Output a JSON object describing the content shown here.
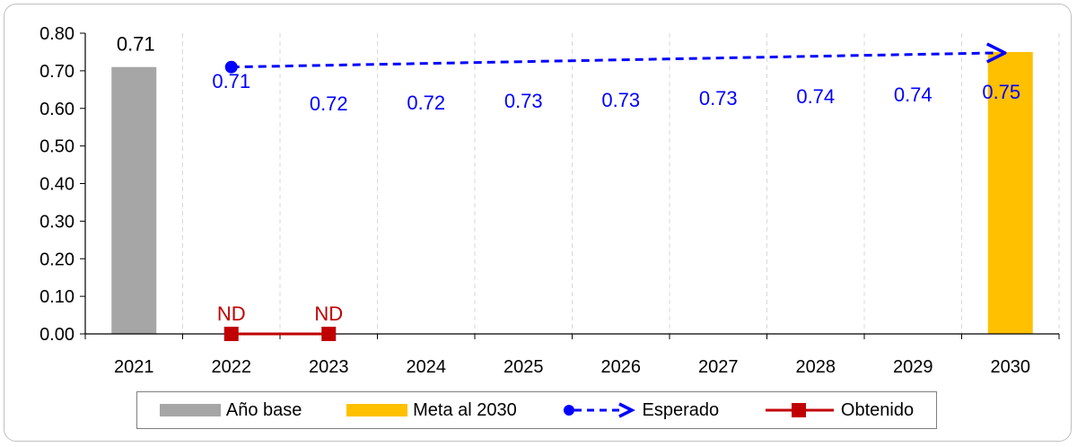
{
  "colors": {
    "base_bar": "#a6a6a6",
    "goal_bar": "#ffc000",
    "expected": "#0000ff",
    "obtained": "#c00000",
    "grid": "#d9d9d9"
  },
  "legend": {
    "base": "Año base",
    "goal": "Meta al 2030",
    "expected": "Esperado",
    "obtained": "Obtenido"
  },
  "chart_data": {
    "type": "bar",
    "categories": [
      "2021",
      "2022",
      "2023",
      "2024",
      "2025",
      "2026",
      "2027",
      "2028",
      "2029",
      "2030"
    ],
    "ylim": [
      0,
      0.8
    ],
    "yticks": [
      "0.00",
      "0.10",
      "0.20",
      "0.30",
      "0.40",
      "0.50",
      "0.60",
      "0.70",
      "0.80"
    ],
    "grid": "vertical dashed",
    "legend_position": "bottom",
    "bars": [
      {
        "name": "Año base",
        "category": "2021",
        "value": 0.71,
        "label": "0.71"
      },
      {
        "name": "Meta al 2030",
        "category": "2030",
        "value": 0.75,
        "label": ""
      }
    ],
    "series": [
      {
        "name": "Esperado",
        "type": "line",
        "style": "dashed-arrow",
        "from": {
          "category": "2022",
          "value": 0.71
        },
        "to": {
          "category": "2030",
          "value": 0.75
        },
        "labels": [
          {
            "category": "2022",
            "text": "0.71"
          },
          {
            "category": "2023",
            "text": "0.72"
          },
          {
            "category": "2024",
            "text": "0.72"
          },
          {
            "category": "2025",
            "text": "0.73"
          },
          {
            "category": "2026",
            "text": "0.73"
          },
          {
            "category": "2027",
            "text": "0.73"
          },
          {
            "category": "2028",
            "text": "0.74"
          },
          {
            "category": "2029",
            "text": "0.74"
          },
          {
            "category": "2030",
            "text": "0.75"
          }
        ]
      },
      {
        "name": "Obtenido",
        "type": "line",
        "points": [
          {
            "category": "2022",
            "value": 0,
            "label": "ND"
          },
          {
            "category": "2023",
            "value": 0,
            "label": "ND"
          }
        ]
      }
    ]
  }
}
